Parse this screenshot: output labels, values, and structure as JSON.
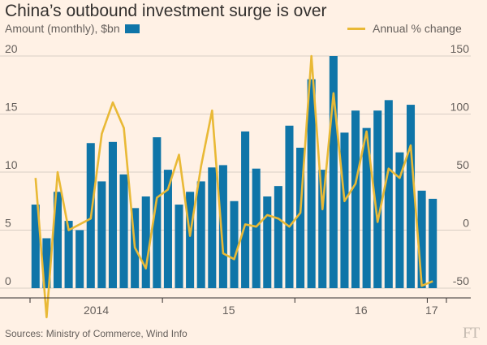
{
  "header": {
    "title": "China’s outbound investment surge is over",
    "legend_bar_label": "Amount (monthly), $bn",
    "legend_line_label": "Annual % change"
  },
  "footer": {
    "source": "Sources: Ministry of Commerce, Wind Info",
    "logo": "FT"
  },
  "colors": {
    "background": "#fff1e5",
    "bars": "#0f75a8",
    "line": "#e9b936",
    "grid": "#d9cec5",
    "text": "#66605c"
  },
  "chart_data": {
    "type": "bar+line",
    "x_tick_labels": [
      "2014",
      "15",
      "16",
      "17"
    ],
    "left_axis": {
      "label": "Amount (monthly), $bn",
      "range": [
        0,
        20
      ],
      "ticks": [
        0,
        5,
        10,
        15,
        20
      ]
    },
    "right_axis": {
      "label": "Annual % change",
      "range": [
        -50,
        150
      ],
      "ticks": [
        -50,
        0,
        50,
        100,
        150
      ]
    },
    "grid": true,
    "series": [
      {
        "name": "Amount (monthly), $bn",
        "kind": "bar",
        "axis": "left",
        "values": [
          7.2,
          4.3,
          8.3,
          5.8,
          5.0,
          12.5,
          9.2,
          12.6,
          9.8,
          6.9,
          7.9,
          13.0,
          10.2,
          7.2,
          8.3,
          9.2,
          10.4,
          10.6,
          7.5,
          13.5,
          10.3,
          7.9,
          8.8,
          14.0,
          12.1,
          18.0,
          10.2,
          20.0,
          13.4,
          15.3,
          13.8,
          15.3,
          16.2,
          11.7,
          15.8,
          8.4,
          7.7
        ]
      },
      {
        "name": "Annual % change",
        "kind": "line",
        "axis": "right",
        "values": [
          45,
          -75,
          50,
          0,
          5,
          10,
          83,
          110,
          88,
          -15,
          -33,
          28,
          35,
          65,
          -5,
          55,
          103,
          -20,
          -25,
          5,
          3,
          13,
          10,
          3,
          15,
          150,
          18,
          118,
          25,
          40,
          85,
          7,
          53,
          45,
          73,
          -48,
          -44
        ]
      }
    ]
  }
}
